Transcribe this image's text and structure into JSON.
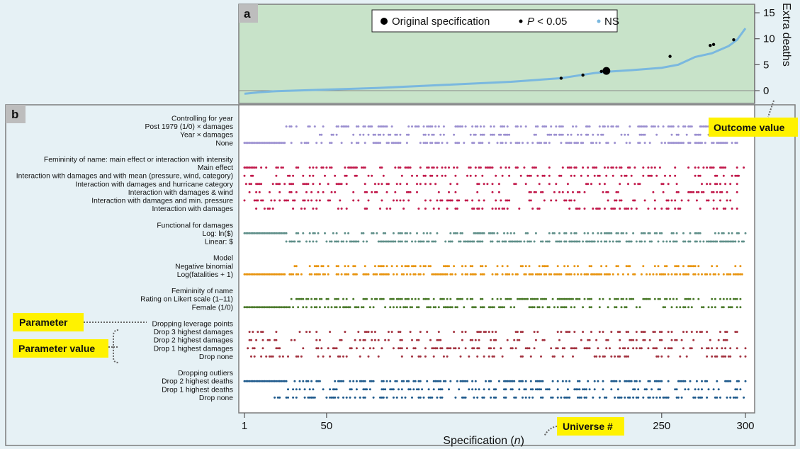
{
  "chart_data": [
    {
      "panel": "a",
      "type": "scatter",
      "ylabel": "Extra deaths",
      "yticks": [
        0,
        5,
        10,
        15
      ],
      "ylim": [
        -1.5,
        16.5
      ],
      "xlim": [
        1,
        300
      ],
      "grid": false,
      "legend": {
        "placement": "top-center",
        "entries": [
          {
            "label": "Original specification",
            "color": "#000000"
          },
          {
            "label": "P < 0.05",
            "color": "#000000"
          },
          {
            "label": "NS",
            "color": "#7ab8df"
          }
        ],
        "label_p_italic": "P",
        "label_p_rest": " < 0.05"
      },
      "curve_x": [
        1,
        10,
        20,
        30,
        50,
        80,
        120,
        160,
        190,
        200,
        210,
        220,
        230,
        250,
        260,
        270,
        280,
        290,
        295,
        300
      ],
      "curve_y": [
        -0.6,
        -0.3,
        -0.1,
        0.0,
        0.2,
        0.5,
        1.1,
        1.7,
        2.4,
        2.9,
        3.4,
        3.7,
        3.9,
        4.4,
        5.0,
        6.5,
        7.2,
        8.6,
        9.8,
        12.0
      ],
      "original": {
        "x": 217,
        "y": 3.8
      },
      "significant": [
        {
          "x": 190,
          "y": 2.4
        },
        {
          "x": 203,
          "y": 3.0
        },
        {
          "x": 214,
          "y": 3.7
        },
        {
          "x": 255,
          "y": 6.6
        },
        {
          "x": 279,
          "y": 8.7
        },
        {
          "x": 281,
          "y": 8.9
        },
        {
          "x": 293,
          "y": 9.8
        }
      ]
    },
    {
      "panel": "b",
      "type": "scatter",
      "xlabel_prefix": "Specification (",
      "xlabel_italic": "n",
      "xlabel_suffix": ")",
      "xticks": [
        {
          "value": 1,
          "label": "1"
        },
        {
          "value": 50,
          "label": "50"
        },
        {
          "value": 250,
          "label": "250"
        },
        {
          "value": 300,
          "label": "300"
        }
      ],
      "xlim": [
        1,
        300
      ],
      "groups": [
        {
          "title": "Controlling for year",
          "color": "#9b8fd0",
          "rows": [
            {
              "label": "Post 1979 (1/0) × damages",
              "pattern": "sparse",
              "start": 26,
              "density": 0.45
            },
            {
              "label": "Year × damages",
              "pattern": "sparse",
              "start": 40,
              "density": 0.35
            },
            {
              "label": "None",
              "pattern": "solid-then-sparse",
              "start": 1,
              "solid_until": 25,
              "density": 0.45
            }
          ]
        },
        {
          "title": "Femininity of name: main effect or interaction with intensity",
          "color": "#c1184a",
          "rows": [
            {
              "label": "Main effect",
              "pattern": "sparse",
              "start": 1,
              "density": 0.4
            },
            {
              "label": "Interaction with damages and with mean (pressure, wind, category)",
              "pattern": "sparse",
              "start": 1,
              "density": 0.28
            },
            {
              "label": "Interaction with damages and hurricane category",
              "pattern": "sparse",
              "start": 1,
              "density": 0.25
            },
            {
              "label": "Interaction with damages & wind",
              "pattern": "sparse",
              "start": 1,
              "density": 0.25
            },
            {
              "label": "Interaction with damages and min. pressure",
              "pattern": "sparse",
              "start": 1,
              "density": 0.25
            },
            {
              "label": "Interaction with damages",
              "pattern": "sparse",
              "start": 1,
              "density": 0.3
            }
          ]
        },
        {
          "title": "Functional for damages",
          "color": "#5f8f89",
          "rows": [
            {
              "label": "Log:  ln($)",
              "pattern": "solid-then-sparse",
              "start": 1,
              "solid_until": 25,
              "density": 0.4
            },
            {
              "label": "Linear: $",
              "pattern": "sparse",
              "start": 26,
              "density": 0.6
            }
          ]
        },
        {
          "title": "Model",
          "color": "#e8930c",
          "rows": [
            {
              "label": "Negative binomial",
              "pattern": "sparse",
              "start": 26,
              "density": 0.35
            },
            {
              "label": "Log(fatalities + 1)",
              "pattern": "solid-then-sparse",
              "start": 1,
              "solid_until": 25,
              "density": 0.6
            }
          ]
        },
        {
          "title": "Femininity of name",
          "color": "#4b7a2b",
          "rows": [
            {
              "label": "Rating on Likert scale (1–11)",
              "pattern": "sparse",
              "start": 26,
              "density": 0.55
            },
            {
              "label": "Female (1/0)",
              "pattern": "solid-then-sparse",
              "start": 1,
              "solid_until": 25,
              "density": 0.45
            }
          ]
        },
        {
          "title": "Dropping leverage points",
          "color": "#a3323f",
          "rows": [
            {
              "label": "Drop 3 highest damages",
              "pattern": "sparse",
              "start": 1,
              "density": 0.3
            },
            {
              "label": "Drop 2 highest damages",
              "pattern": "sparse",
              "start": 1,
              "density": 0.25
            },
            {
              "label": "Drop 1 highest damages",
              "pattern": "sparse",
              "start": 1,
              "density": 0.35
            },
            {
              "label": "Drop none",
              "pattern": "sparse",
              "start": 1,
              "density": 0.3
            }
          ]
        },
        {
          "title": "Dropping outliers",
          "color": "#1f5a8c",
          "rows": [
            {
              "label": "Drop 2 highest deaths",
              "pattern": "solid-then-sparse",
              "start": 1,
              "solid_until": 25,
              "density": 0.45
            },
            {
              "label": "Drop 1 highest deaths",
              "pattern": "sparse",
              "start": 18,
              "density": 0.35
            },
            {
              "label": "Drop none",
              "pattern": "sparse",
              "start": 18,
              "density": 0.4
            }
          ]
        }
      ]
    }
  ],
  "panel_labels": {
    "a": "a",
    "b": "b"
  },
  "annotations": {
    "outcome_value": "Outcome value",
    "parameter": "Parameter",
    "parameter_value": "Parameter value",
    "universe": "Universe #"
  },
  "colors": {
    "panel_a_bg": "#c8e3c9",
    "annotation_bg": "#fff200",
    "ns_blue": "#7ab8df",
    "page_bg": "#e6f1f5"
  }
}
